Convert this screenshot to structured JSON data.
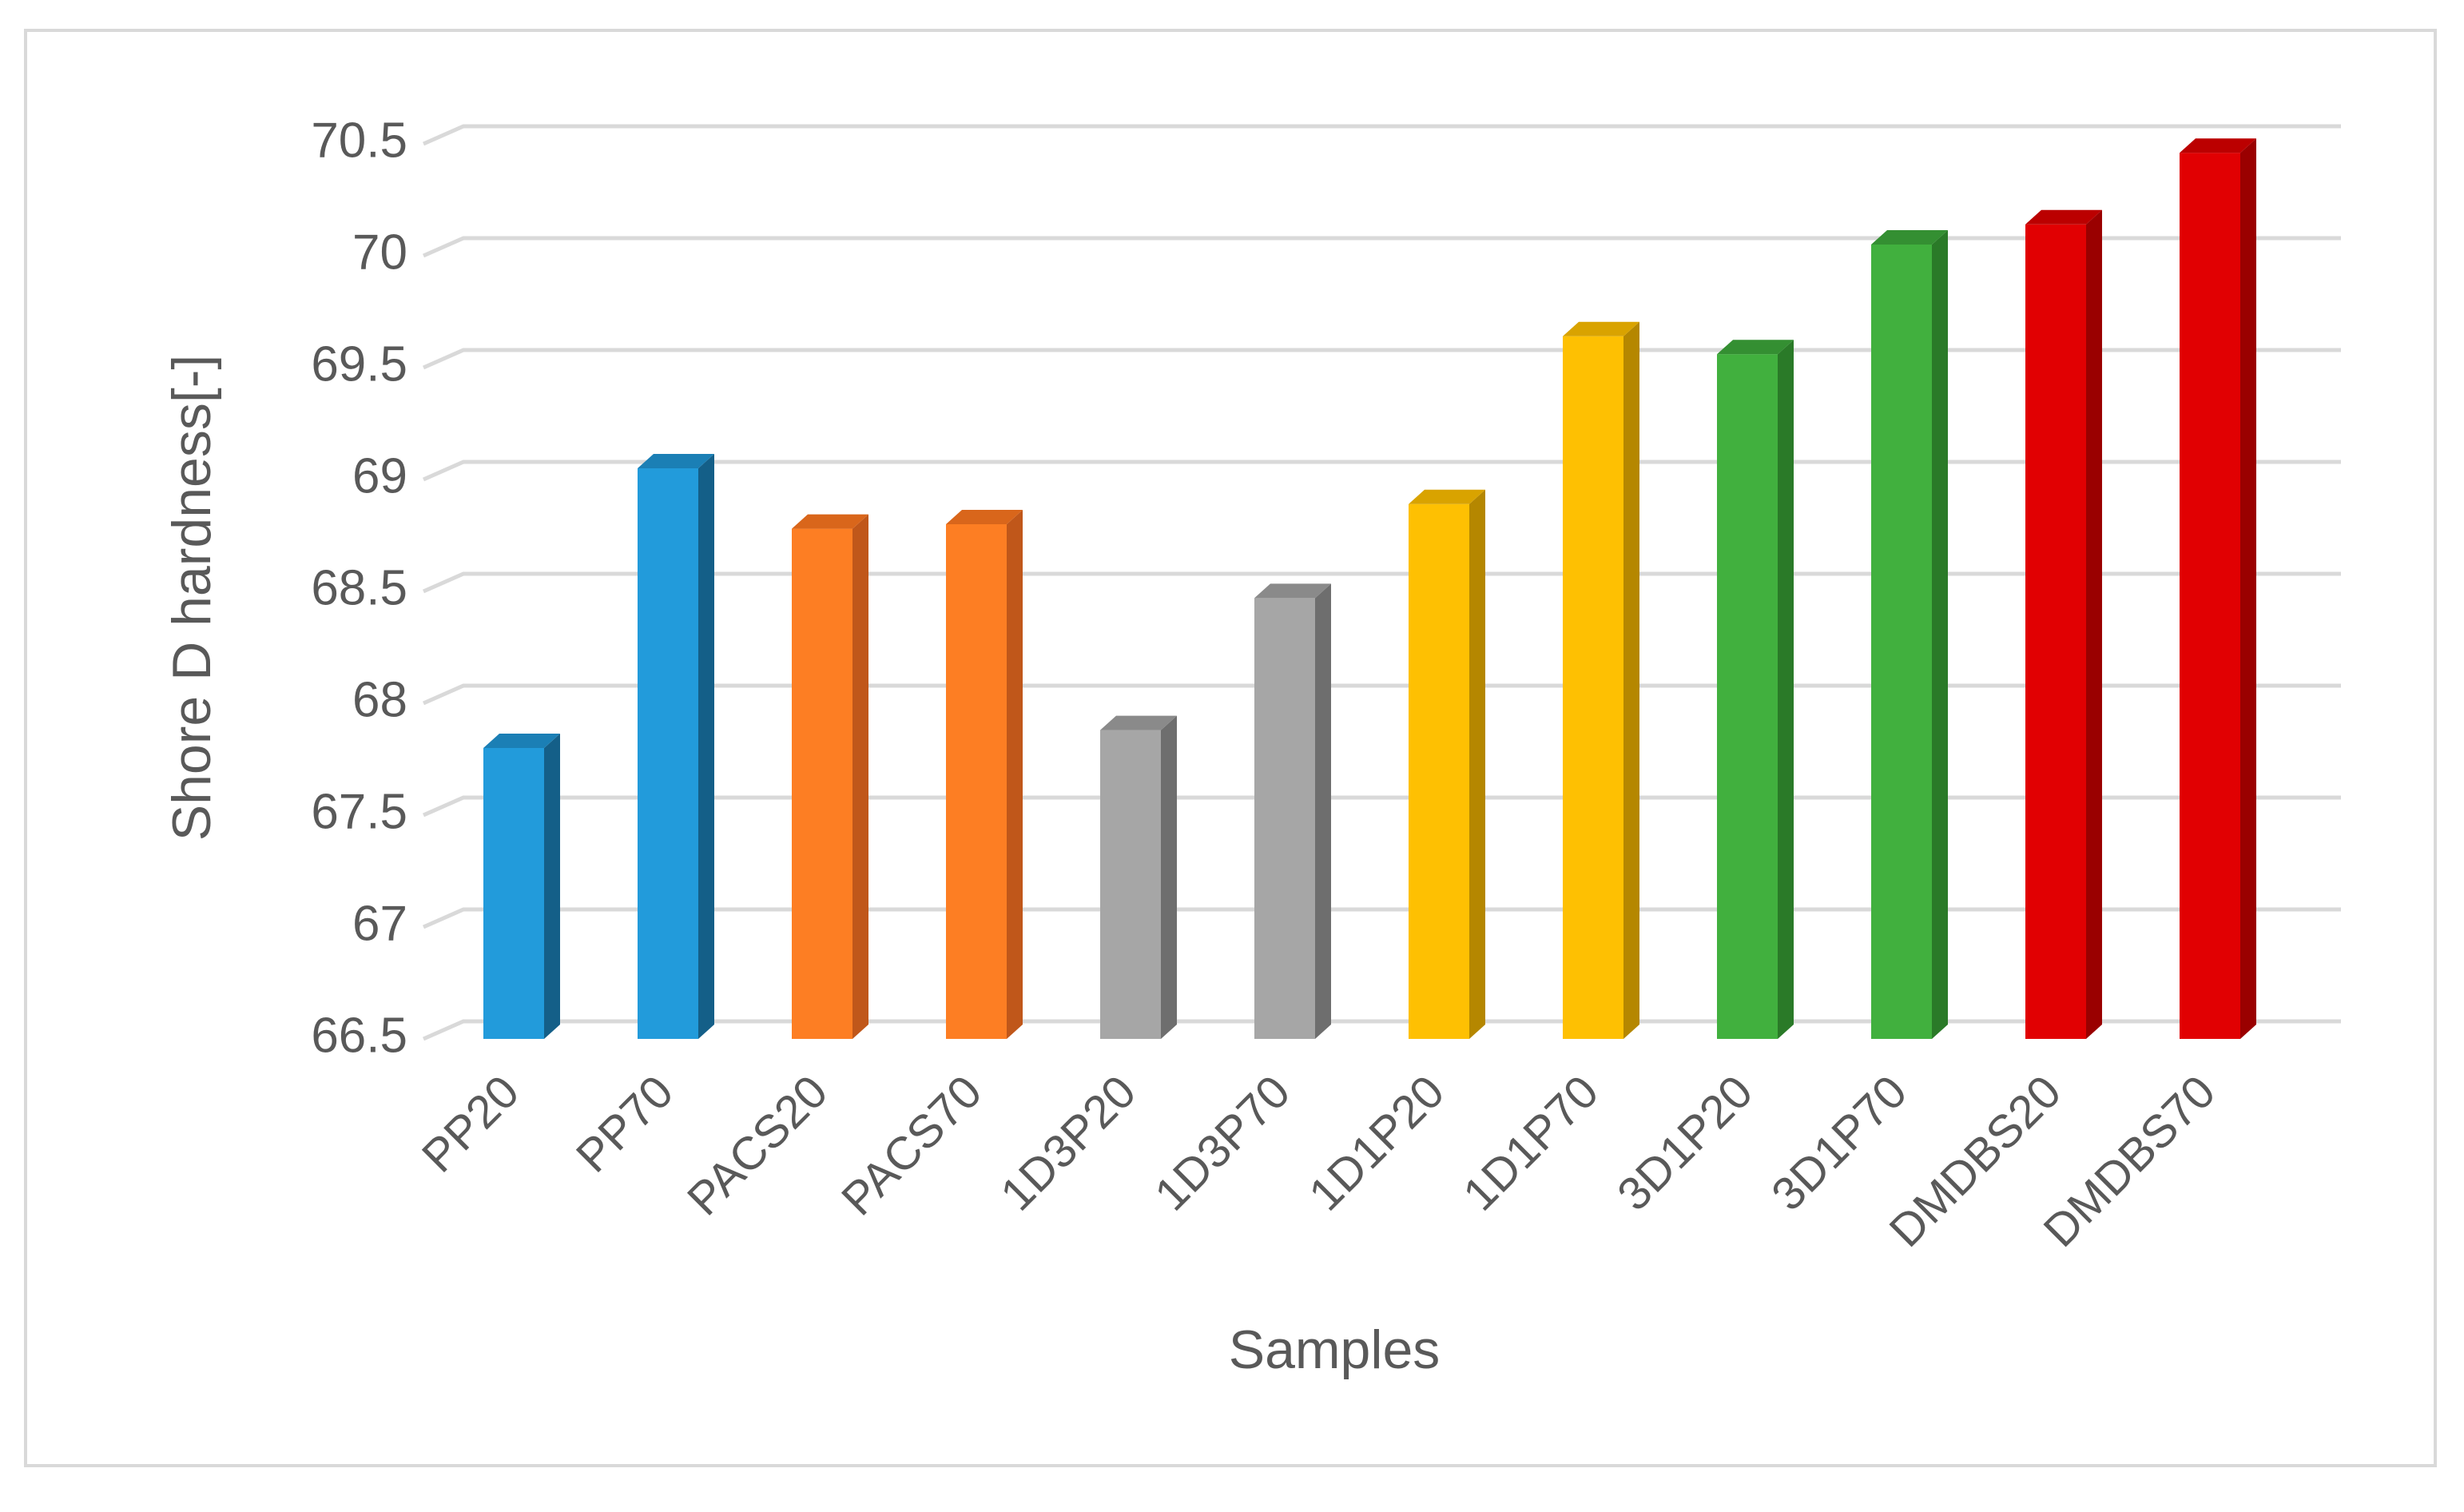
{
  "chart_data": {
    "type": "bar",
    "style": "3d-column",
    "categories": [
      "PP20",
      "PP70",
      "PACS20",
      "PACS70",
      "1D3P20",
      "1D3P70",
      "1D1P20",
      "1D1P70",
      "3D1P20",
      "3D1P70",
      "DMDBS20",
      "DMDBS70"
    ],
    "values": [
      67.8,
      69.05,
      68.78,
      68.8,
      67.88,
      68.47,
      68.89,
      69.64,
      69.56,
      70.05,
      70.14,
      70.46
    ],
    "colors": [
      "#229bdb",
      "#229bdb",
      "#fd7e23",
      "#fd7e23",
      "#a6a6a6",
      "#a6a6a6",
      "#fec002",
      "#fec002",
      "#41b03e",
      "#41b03e",
      "#e10002",
      "#e10002"
    ],
    "side_colors": [
      "#145f88",
      "#145f88",
      "#c0571a",
      "#c0571a",
      "#6e6e6e",
      "#6e6e6e",
      "#b58700",
      "#b58700",
      "#2a7a28",
      "#2a7a28",
      "#9a0000",
      "#9a0000"
    ],
    "top_colors": [
      "#1b7fb5",
      "#1b7fb5",
      "#d9661b",
      "#d9661b",
      "#8a8a8a",
      "#8a8a8a",
      "#d9a300",
      "#d9a300",
      "#348f32",
      "#348f32",
      "#bb0000",
      "#bb0000"
    ],
    "title": "",
    "xlabel": "Samples",
    "ylabel": "Shore D hardness[-]",
    "ylim": [
      66.5,
      70.5
    ],
    "yticks": [
      66.5,
      67,
      67.5,
      68,
      68.5,
      69,
      69.5,
      70,
      70.5
    ],
    "ytick_labels": [
      "66.5",
      "67",
      "67.5",
      "68",
      "68.5",
      "69",
      "69.5",
      "70",
      "70.5"
    ],
    "grid": true,
    "legend": "none"
  }
}
